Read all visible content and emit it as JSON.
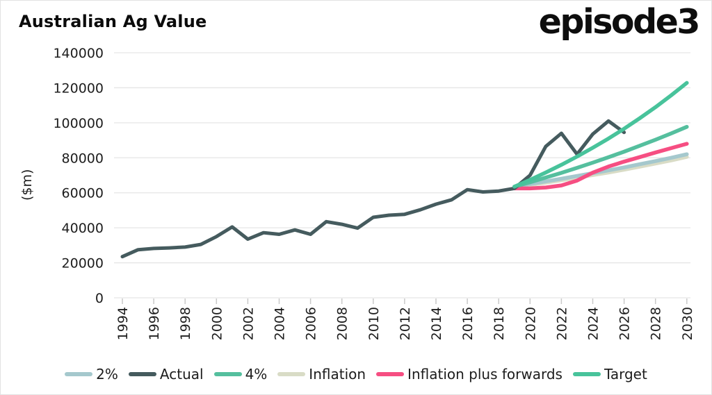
{
  "header": {
    "title": "Australian Ag Value",
    "logo": "episode3"
  },
  "chart_data": {
    "type": "line",
    "title": "Australian Ag Value",
    "xlabel": "",
    "ylabel": "($m)",
    "ylim": [
      0,
      140000
    ],
    "ytick_step": 20000,
    "ytick_labels": [
      "0",
      "20000",
      "40000",
      "60000",
      "80000",
      "100000",
      "120000",
      "140000"
    ],
    "x": [
      1994,
      1995,
      1996,
      1997,
      1998,
      1999,
      2000,
      2001,
      2002,
      2003,
      2004,
      2005,
      2006,
      2007,
      2008,
      2009,
      2010,
      2011,
      2012,
      2013,
      2014,
      2015,
      2016,
      2017,
      2018,
      2019,
      2020,
      2021,
      2022,
      2023,
      2024,
      2025,
      2026,
      2027,
      2028,
      2029,
      2030
    ],
    "xtick_labels": [
      "1994",
      "1996",
      "1998",
      "2000",
      "2002",
      "2004",
      "2006",
      "2008",
      "2010",
      "2012",
      "2014",
      "2016",
      "2018",
      "2020",
      "2022",
      "2024",
      "2026",
      "2028",
      "2030"
    ],
    "grid": "horizontal",
    "legend_position": "bottom",
    "series": [
      {
        "name": "2%",
        "color": "#a5c8cd",
        "values": [
          null,
          null,
          null,
          null,
          null,
          null,
          null,
          null,
          null,
          null,
          null,
          null,
          null,
          null,
          null,
          null,
          null,
          null,
          null,
          null,
          null,
          null,
          null,
          null,
          null,
          63500,
          65000,
          66500,
          68000,
          69600,
          71200,
          72800,
          74500,
          76300,
          78100,
          80000,
          82000
        ]
      },
      {
        "name": "Actual",
        "color": "#455b5e",
        "values": [
          23500,
          27500,
          28200,
          28500,
          29000,
          30500,
          35000,
          40500,
          33500,
          37200,
          36300,
          38800,
          36300,
          43500,
          42000,
          39800,
          46000,
          47200,
          47700,
          50300,
          53500,
          56000,
          61800,
          60500,
          61000,
          62500,
          70000,
          86500,
          94000,
          82000,
          93500,
          101000,
          94500,
          null,
          null,
          null,
          null
        ]
      },
      {
        "name": "4%",
        "color": "#55bf9e",
        "values": [
          null,
          null,
          null,
          null,
          null,
          null,
          null,
          null,
          null,
          null,
          null,
          null,
          null,
          null,
          null,
          null,
          null,
          null,
          null,
          null,
          null,
          null,
          null,
          null,
          null,
          63500,
          66000,
          68700,
          71400,
          74300,
          77200,
          80300,
          83500,
          86900,
          90300,
          93900,
          97700
        ]
      },
      {
        "name": "Inflation",
        "color": "#d9dcc6",
        "values": [
          null,
          null,
          null,
          null,
          null,
          null,
          null,
          null,
          null,
          null,
          null,
          null,
          null,
          null,
          null,
          null,
          null,
          null,
          null,
          null,
          null,
          null,
          null,
          null,
          null,
          63200,
          64500,
          65800,
          67200,
          68600,
          70100,
          71600,
          73200,
          74900,
          76700,
          78500,
          80500
        ]
      },
      {
        "name": "Inflation plus forwards",
        "color": "#f64e82",
        "values": [
          null,
          null,
          null,
          null,
          null,
          null,
          null,
          null,
          null,
          null,
          null,
          null,
          null,
          null,
          null,
          null,
          null,
          null,
          null,
          null,
          null,
          null,
          null,
          null,
          null,
          62500,
          62500,
          63000,
          64200,
          67000,
          71500,
          75000,
          77800,
          80400,
          83000,
          85500,
          88000
        ]
      },
      {
        "name": "Target",
        "color": "#48c39b",
        "values": [
          null,
          null,
          null,
          null,
          null,
          null,
          null,
          null,
          null,
          null,
          null,
          null,
          null,
          null,
          null,
          null,
          null,
          null,
          null,
          null,
          null,
          null,
          null,
          null,
          null,
          63500,
          67400,
          71600,
          76000,
          80700,
          85700,
          91000,
          96600,
          102600,
          108900,
          115700,
          122800
        ]
      }
    ],
    "draw_order": [
      "Inflation",
      "2%",
      "Inflation plus forwards",
      "4%",
      "Actual",
      "Target"
    ]
  }
}
